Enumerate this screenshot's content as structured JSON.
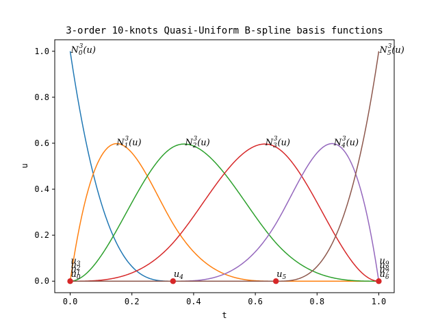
{
  "chart_data": {
    "type": "line",
    "title": "3-order 10-knots Quasi-Uniform B-spline basis functions",
    "xlabel": "t",
    "ylabel": "u",
    "xlim": [
      -0.05,
      1.05
    ],
    "ylim": [
      -0.05,
      1.05
    ],
    "xticks": [
      "0.0",
      "0.2",
      "0.4",
      "0.6",
      "0.8",
      "1.0"
    ],
    "yticks": [
      "0.0",
      "0.2",
      "0.4",
      "0.6",
      "0.8",
      "1.0"
    ],
    "grid": false,
    "legend": "none",
    "knots": [
      0,
      0,
      0,
      0,
      0.3333,
      0.6667,
      1,
      1,
      1,
      1
    ],
    "knot_labels": [
      {
        "base": "u",
        "sub": "0"
      },
      {
        "base": "u",
        "sub": "1"
      },
      {
        "base": "u",
        "sub": "2"
      },
      {
        "base": "u",
        "sub": "3"
      },
      {
        "base": "u",
        "sub": "4"
      },
      {
        "base": "u",
        "sub": "5"
      },
      {
        "base": "u",
        "sub": "6"
      },
      {
        "base": "u",
        "sub": "7"
      },
      {
        "base": "u",
        "sub": "8"
      },
      {
        "base": "u",
        "sub": "9"
      }
    ],
    "knot_marker_color": "#d62728",
    "series": [
      {
        "label": {
          "base": "N",
          "sub": "0",
          "sup": "3",
          "arg": "(u)"
        },
        "color": "#1f77b4",
        "peak": [
          0.0,
          1.0
        ]
      },
      {
        "label": {
          "base": "N",
          "sub": "1",
          "sup": "3",
          "arg": "(u)"
        },
        "color": "#ff7f0e",
        "peak": [
          0.148,
          0.597
        ]
      },
      {
        "label": {
          "base": "N",
          "sub": "2",
          "sup": "3",
          "arg": "(u)"
        },
        "color": "#2ca02c",
        "peak": [
          0.37,
          0.597
        ]
      },
      {
        "label": {
          "base": "N",
          "sub": "3",
          "sup": "3",
          "arg": "(u)"
        },
        "color": "#d62728",
        "peak": [
          0.63,
          0.597
        ]
      },
      {
        "label": {
          "base": "N",
          "sub": "4",
          "sup": "3",
          "arg": "(u)"
        },
        "color": "#9467bd",
        "peak": [
          0.852,
          0.597
        ]
      },
      {
        "label": {
          "base": "N",
          "sub": "5",
          "sup": "3",
          "arg": "(u)"
        },
        "color": "#8c564b",
        "peak": [
          1.0,
          1.0
        ]
      }
    ]
  }
}
